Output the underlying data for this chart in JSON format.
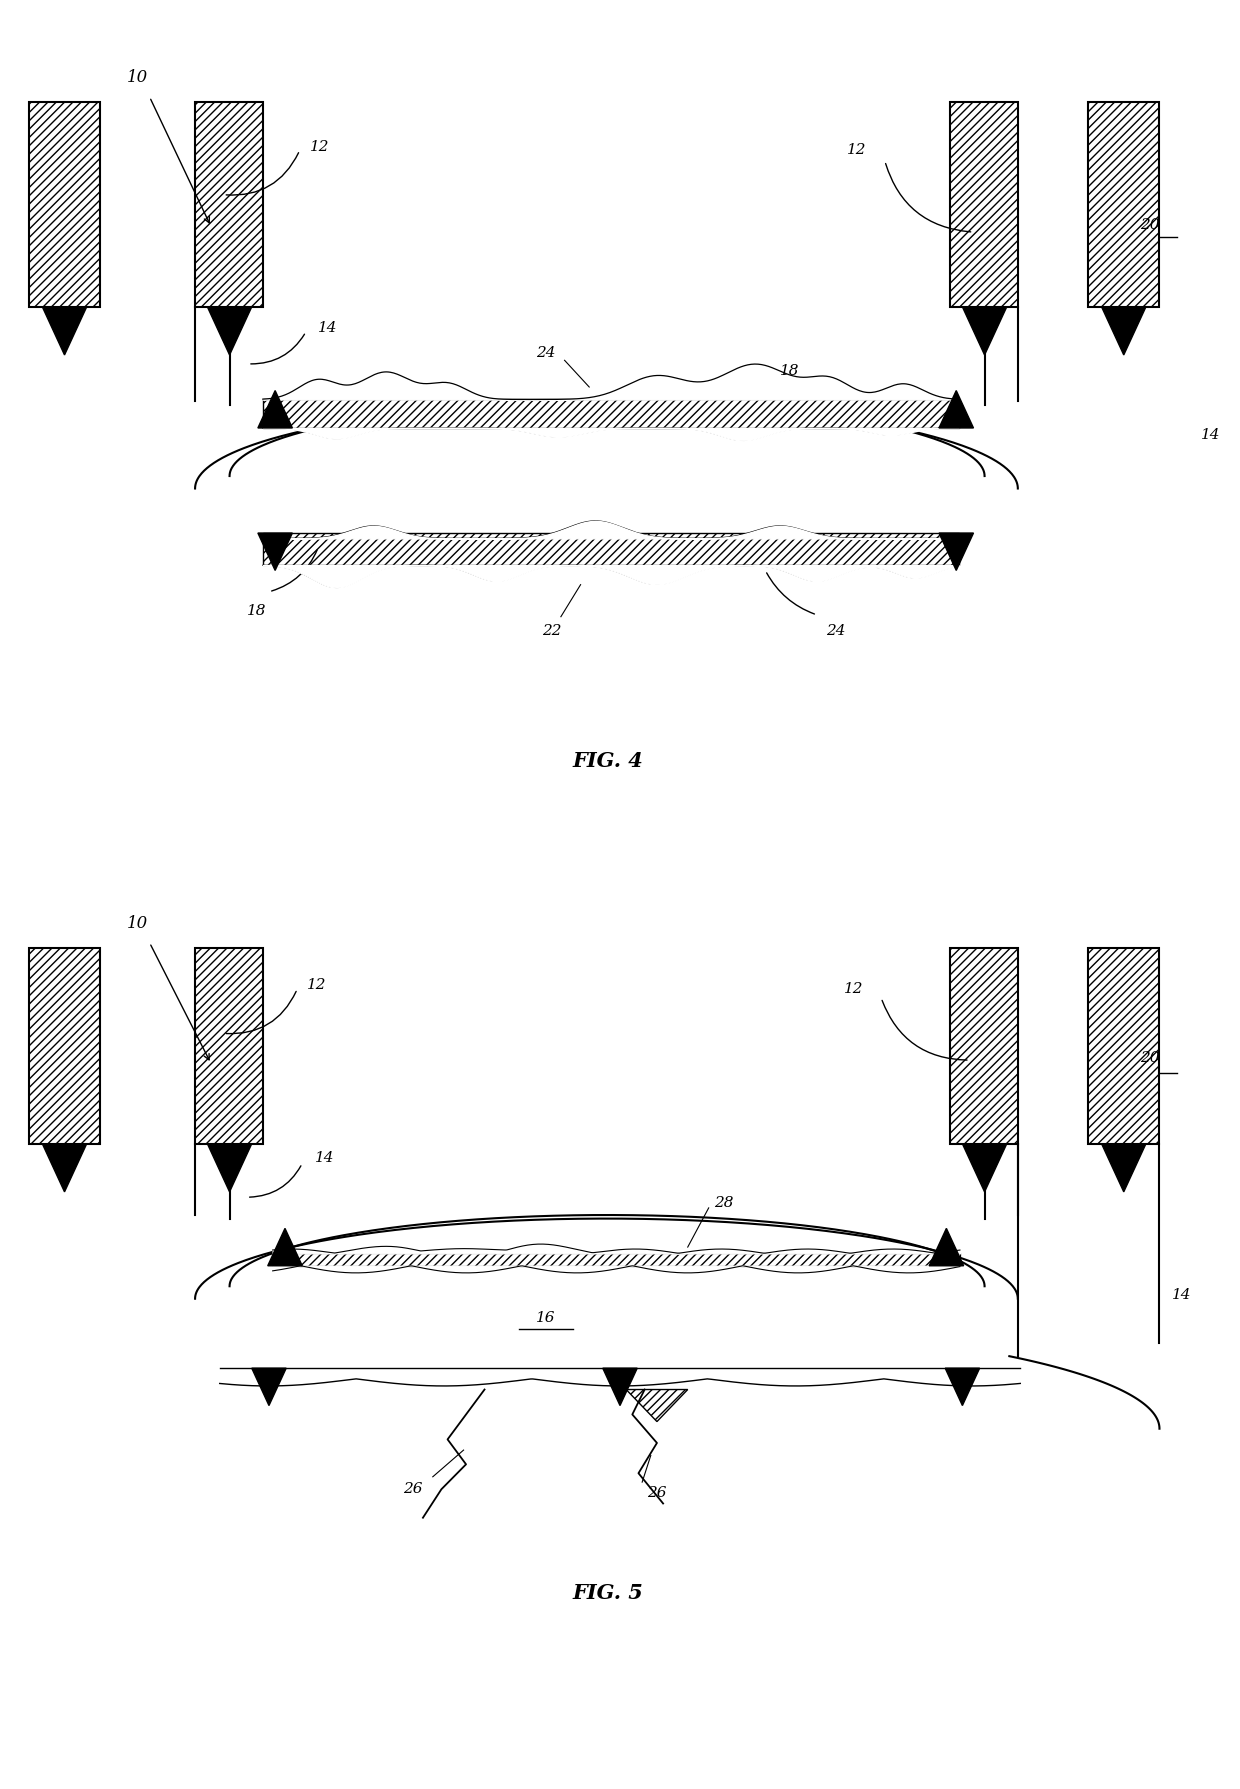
{
  "fig_width": 12.4,
  "fig_height": 17.89,
  "background_color": "#ffffff",
  "line_color": "#000000",
  "hatch_pattern": "////",
  "fig4_title": "FIG. 4",
  "fig5_title": "FIG. 5"
}
